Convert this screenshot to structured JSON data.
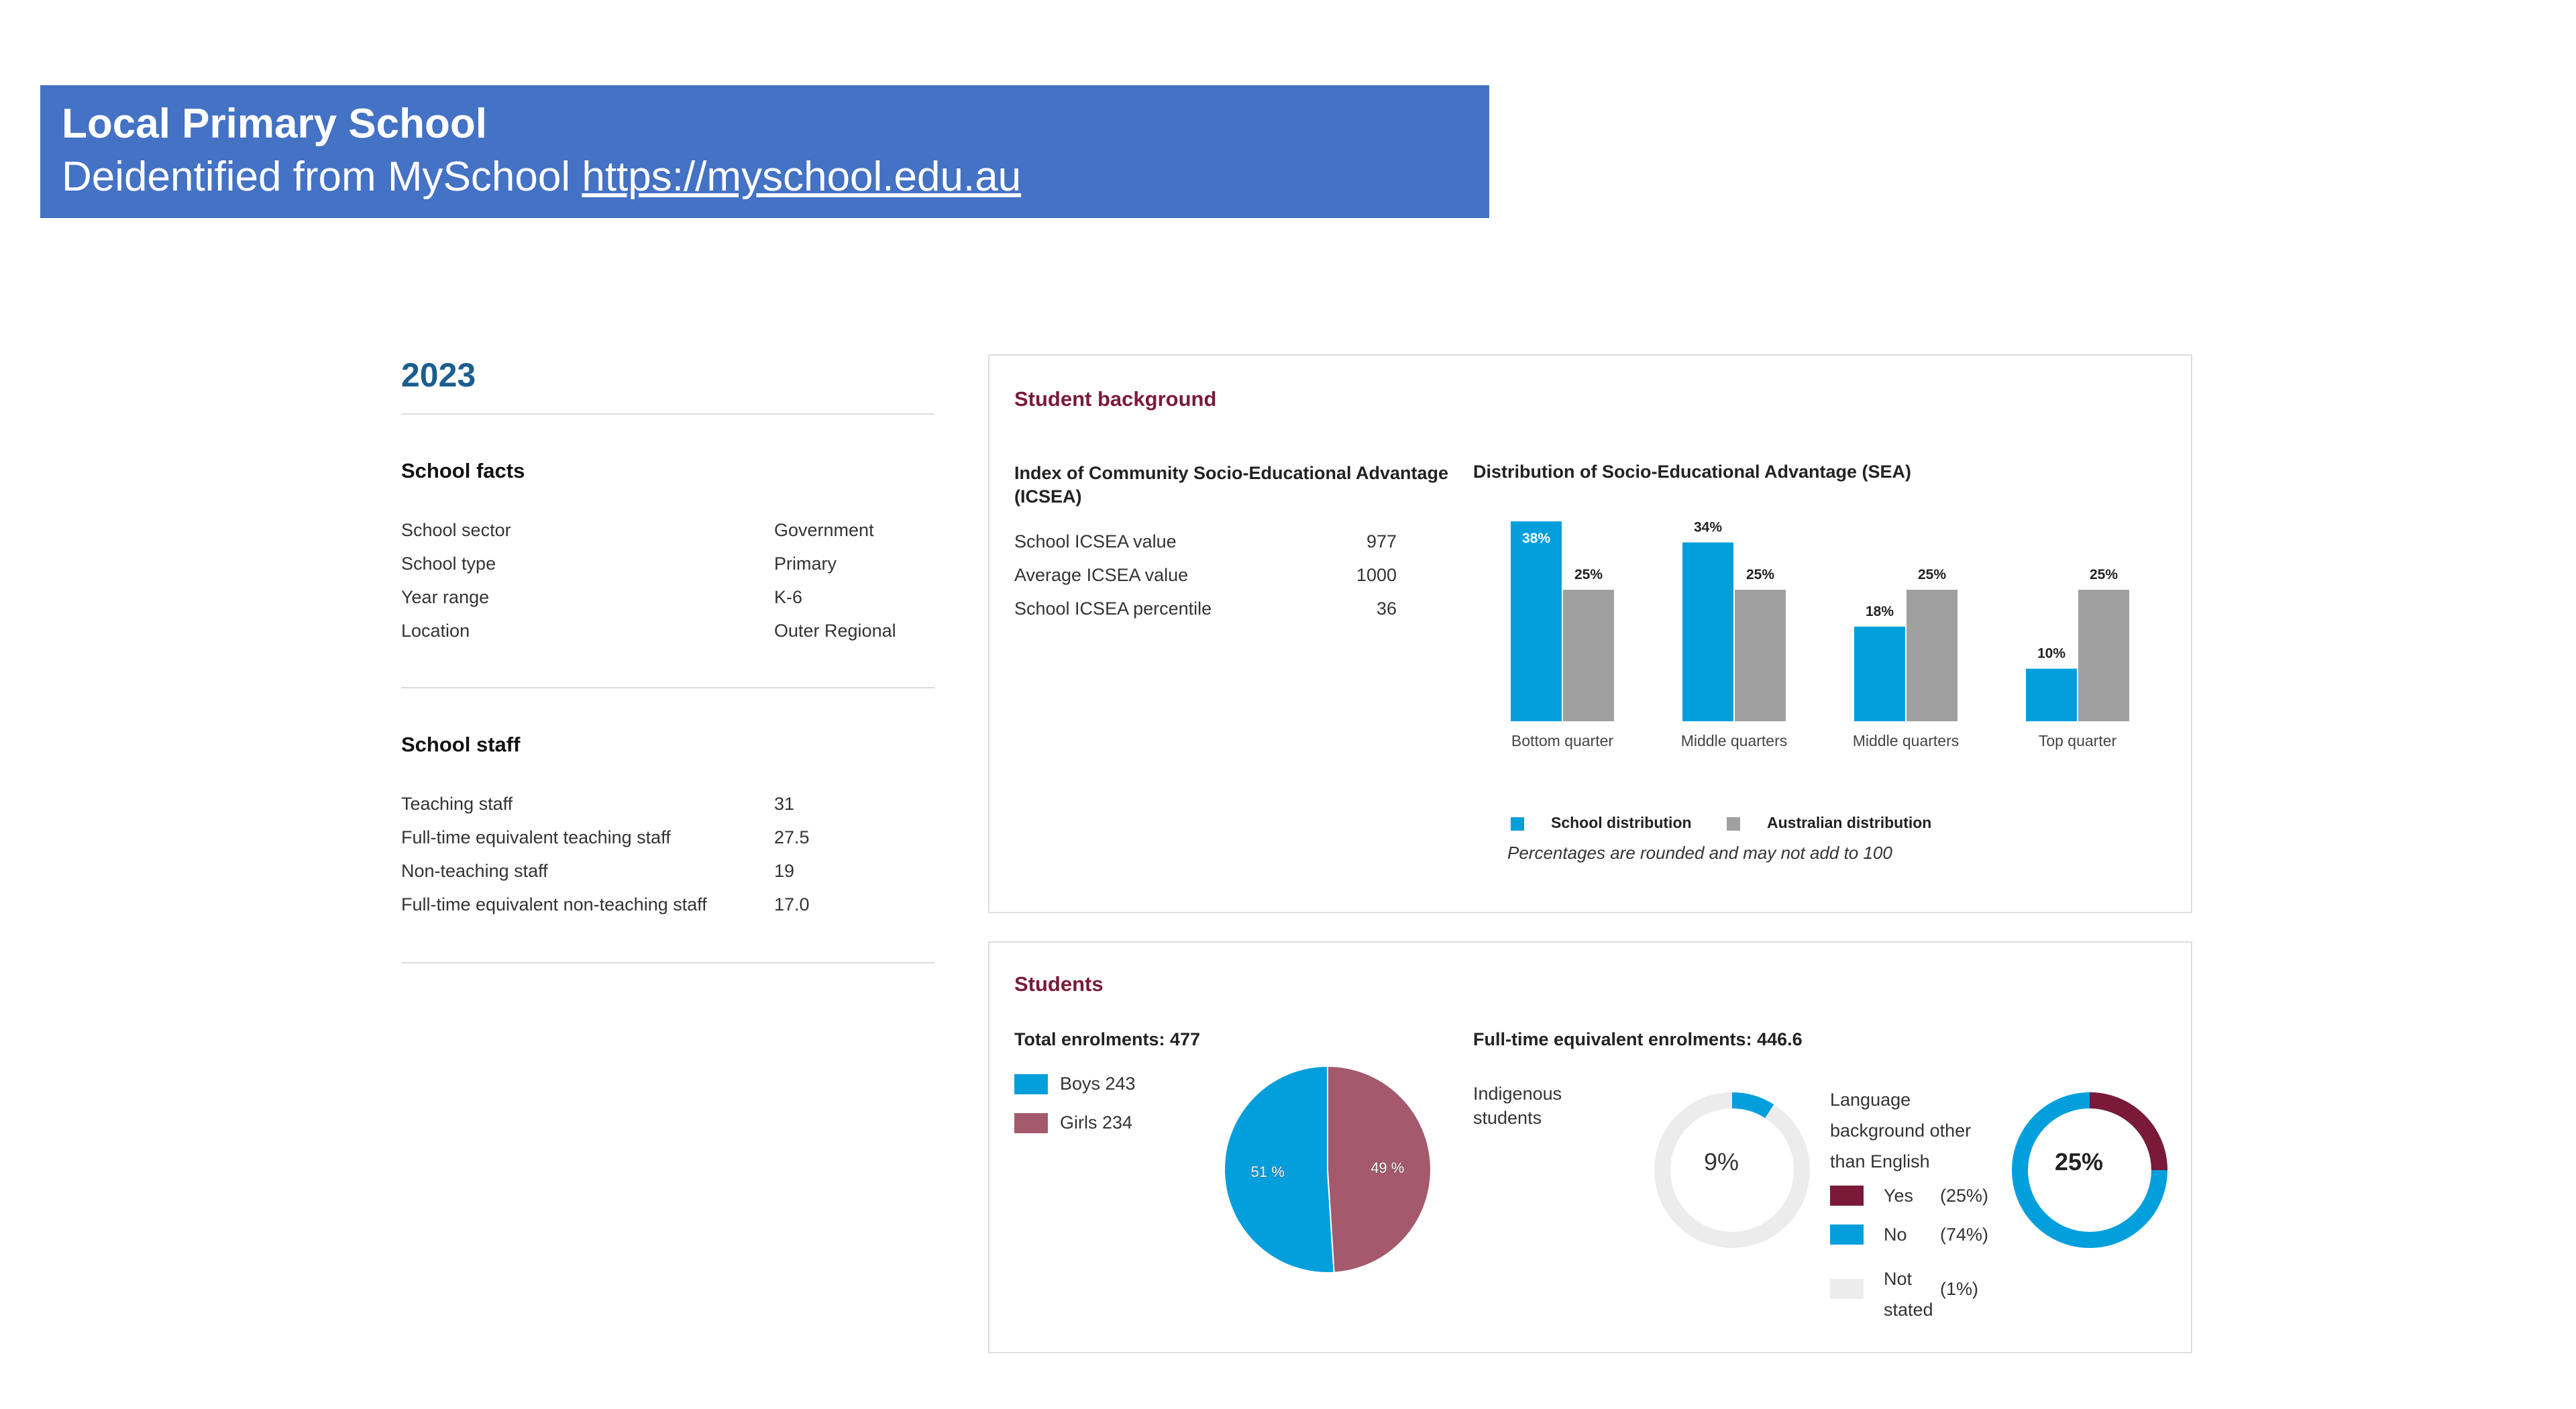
{
  "banner": {
    "title": "Local Primary School",
    "subtitle_prefix": "Deidentified from MySchool ",
    "link": "https://myschool.edu.au"
  },
  "year": "2023",
  "school_facts": {
    "title": "School facts",
    "rows": [
      {
        "label": "School sector",
        "value": "Government"
      },
      {
        "label": "School type",
        "value": "Primary"
      },
      {
        "label": "Year range",
        "value": "K-6"
      },
      {
        "label": "Location",
        "value": "Outer Regional"
      }
    ]
  },
  "school_staff": {
    "title": "School staff",
    "rows": [
      {
        "label": "Teaching staff",
        "value": "31"
      },
      {
        "label": "Full-time equivalent teaching staff",
        "value": "27.5"
      },
      {
        "label": "Non-teaching staff",
        "value": "19"
      },
      {
        "label": "Full-time equivalent non-teaching staff",
        "value": "17.0"
      }
    ]
  },
  "student_background": {
    "title": "Student background",
    "icsea": {
      "title": "Index of Community Socio-Educational Advantage (ICSEA)",
      "rows": [
        {
          "label": "School ICSEA value",
          "value": "977"
        },
        {
          "label": "Average ICSEA value",
          "value": "1000"
        },
        {
          "label": "School ICSEA percentile",
          "value": "36"
        }
      ]
    },
    "sea_title": "Distribution of Socio-Educational Advantage (SEA)",
    "legend_school": "School distribution",
    "legend_australia": "Australian distribution",
    "footnote": "Percentages are rounded and may not add to 100"
  },
  "students": {
    "title": "Students",
    "total_enrolments": "Total enrolments: 477",
    "fte_enrolments": "Full-time equivalent enrolments: 446.6",
    "boys_label": "Boys 243",
    "girls_label": "Girls 234",
    "pie_boys_pct": "51 %",
    "pie_girls_pct": "49 %",
    "indigenous_label": "Indigenous students",
    "indigenous_pct_text": "9%",
    "indigenous_pct": 9,
    "lbote_label": "Language background other than English",
    "lbote_pct_text": "25%",
    "lbote_pct": 25,
    "lbote_legend": [
      {
        "label": "Yes",
        "pct": "(25%)"
      },
      {
        "label": "No",
        "pct": "(74%)"
      },
      {
        "label": "Not stated",
        "pct": "(1%)"
      }
    ]
  },
  "colors": {
    "school": "#039fdd",
    "australia": "#a0a0a0",
    "boys": "#039fdd",
    "girls": "#a45a6c",
    "yes": "#7a1a38",
    "no": "#039fdd",
    "not_stated": "#ececec",
    "donut_track": "#ececec"
  },
  "chart_data": [
    {
      "type": "bar",
      "title": "Distribution of Socio-Educational Advantage (SEA)",
      "categories": [
        "Bottom quarter",
        "Middle quarters",
        "Middle quarters",
        "Top quarter"
      ],
      "series": [
        {
          "name": "School distribution",
          "values": [
            38,
            34,
            18,
            10
          ]
        },
        {
          "name": "Australian distribution",
          "values": [
            25,
            25,
            25,
            25
          ]
        }
      ],
      "value_labels": [
        [
          "38%",
          "34%",
          "18%",
          "10%"
        ],
        [
          "25%",
          "25%",
          "25%",
          "25%"
        ]
      ],
      "ylim": [
        0,
        40
      ],
      "legend": "bottom"
    },
    {
      "type": "pie",
      "title": "Total enrolments: 477",
      "labels": [
        "Boys 243",
        "Girls 234"
      ],
      "values": [
        51,
        49
      ]
    }
  ]
}
